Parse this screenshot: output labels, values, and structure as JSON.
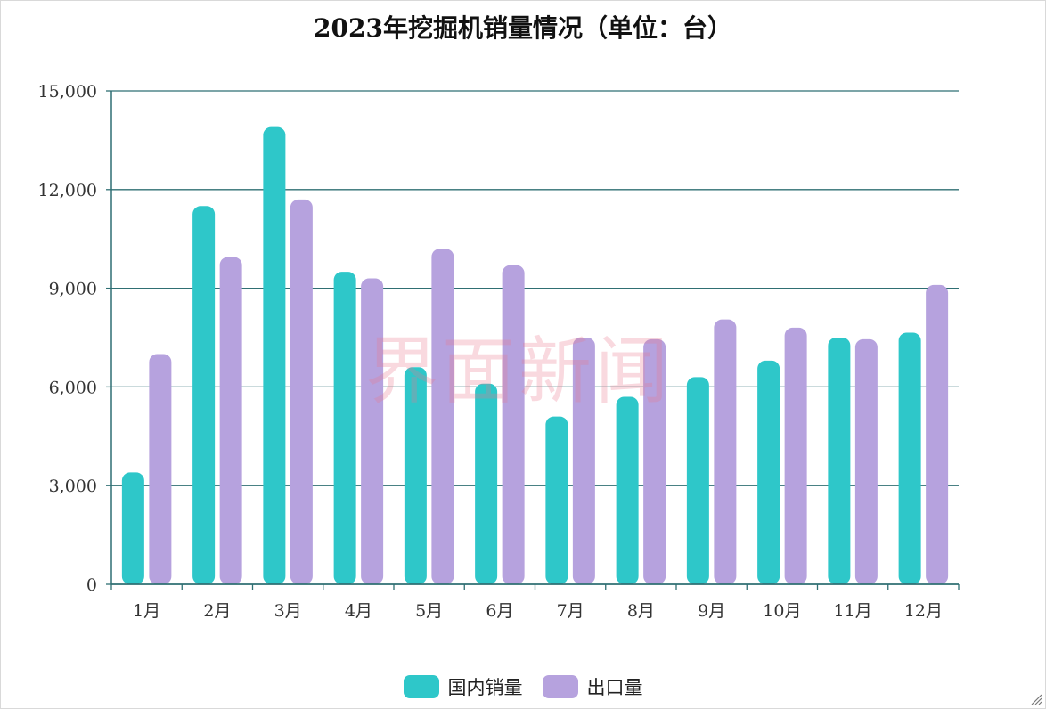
{
  "watermark_text": "界面新闻",
  "chart_data": {
    "type": "bar",
    "title": "2023年挖掘机销量情况（单位：台）",
    "xlabel": "",
    "ylabel": "",
    "categories": [
      "1月",
      "2月",
      "3月",
      "4月",
      "5月",
      "6月",
      "7月",
      "8月",
      "9月",
      "10月",
      "11月",
      "12月"
    ],
    "series": [
      {
        "name": "国内销量",
        "color": "#2ec7c9",
        "values": [
          3400,
          11500,
          13900,
          9500,
          6600,
          6100,
          5100,
          5700,
          6300,
          6800,
          7500,
          7650
        ]
      },
      {
        "name": "出口量",
        "color": "#b6a2de",
        "values": [
          7000,
          9950,
          11700,
          9300,
          10200,
          9700,
          7500,
          7450,
          8050,
          7800,
          7450,
          9100
        ]
      }
    ],
    "ylim": [
      0,
      15000
    ],
    "yticks": [
      0,
      3000,
      6000,
      9000,
      12000,
      15000
    ],
    "ytick_labels": [
      "0",
      "3,000",
      "6,000",
      "9,000",
      "12,000",
      "15,000"
    ],
    "grid": true,
    "legend": "bottom-center"
  }
}
